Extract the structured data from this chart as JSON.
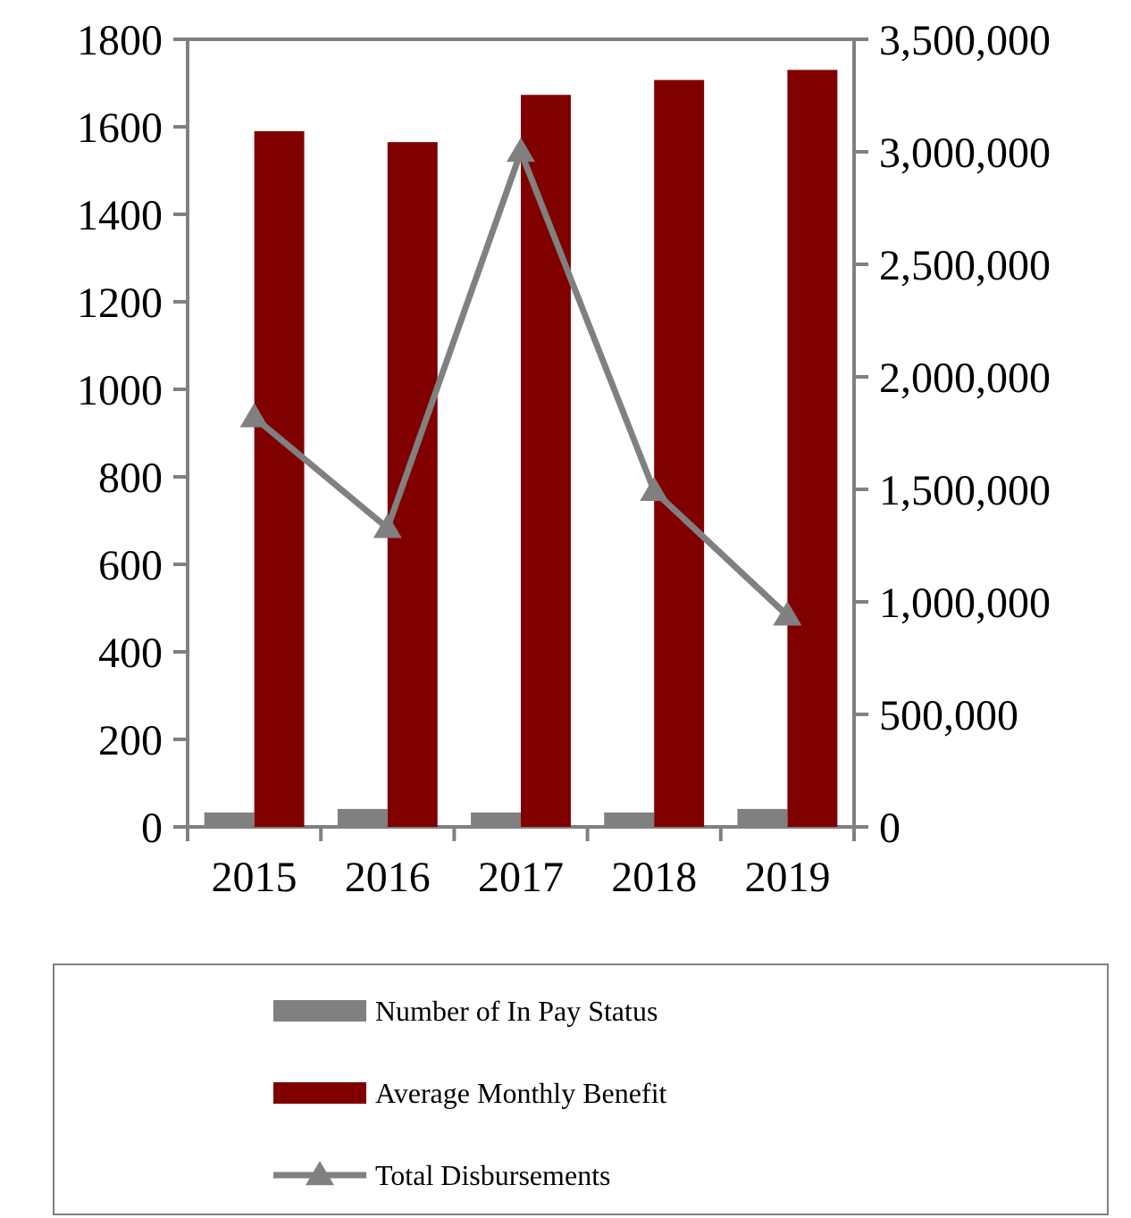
{
  "chart_data": {
    "type": "bar",
    "categories": [
      "2015",
      "2016",
      "2017",
      "2018",
      "2019"
    ],
    "series": [
      {
        "name": "Number of In Pay Status",
        "color": "#808080",
        "values": [
          33,
          41,
          33,
          33,
          41
        ]
      },
      {
        "name": "Average Monthly Benefit",
        "color": "#800000",
        "values": [
          1590,
          1565,
          1673,
          1707,
          1730
        ]
      },
      {
        "name": "Total Disbursements",
        "type": "line",
        "axis": "y2",
        "color": "#808080",
        "marker": "triangle",
        "values": [
          1820000,
          1328000,
          3000000,
          1493000,
          939000
        ]
      }
    ],
    "ylim": [
      0,
      1800
    ],
    "yticks": [
      0,
      200,
      400,
      600,
      800,
      1000,
      1200,
      1400,
      1600,
      1800
    ],
    "y2lim": [
      0,
      3500000
    ],
    "y2ticks": [
      {
        "value": 0,
        "label": "0"
      },
      {
        "value": 500000,
        "label": "500,000"
      },
      {
        "value": 1000000,
        "label": "1,000,000"
      },
      {
        "value": 1500000,
        "label": "1,500,000"
      },
      {
        "value": 2000000,
        "label": "2,000,000"
      },
      {
        "value": 2500000,
        "label": "2,500,000"
      },
      {
        "value": 3000000,
        "label": "3,000,000"
      },
      {
        "value": 3500000,
        "label": "3,500,000"
      }
    ],
    "grid": false,
    "legend": "bottom"
  }
}
